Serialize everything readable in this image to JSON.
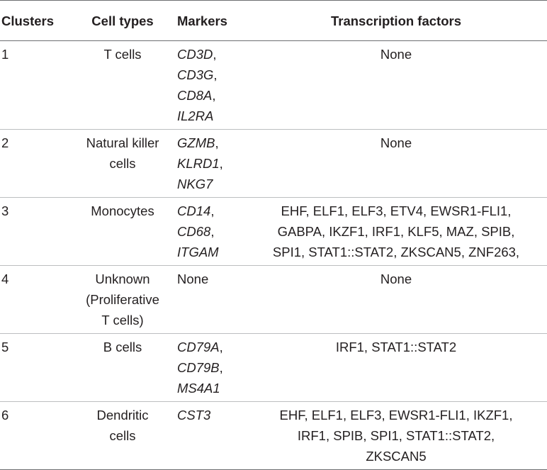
{
  "table": {
    "headers": [
      "Clusters",
      "Cell types",
      "Markers",
      "Transcription factors"
    ],
    "rows": [
      {
        "cluster": "1",
        "cell_type": [
          "T cells"
        ],
        "markers": [
          {
            "gene": "CD3D",
            "sep": ","
          },
          {
            "gene": "CD3G",
            "sep": ","
          },
          {
            "gene": "CD8A",
            "sep": ","
          },
          {
            "gene": "IL2RA",
            "sep": ""
          }
        ],
        "tf": [
          "None"
        ]
      },
      {
        "cluster": "2",
        "cell_type": [
          "Natural killer",
          "cells"
        ],
        "markers": [
          {
            "gene": "GZMB",
            "sep": ","
          },
          {
            "gene": "KLRD1",
            "sep": ","
          },
          {
            "gene": "NKG7",
            "sep": ""
          }
        ],
        "tf": [
          "None"
        ]
      },
      {
        "cluster": "3",
        "cell_type": [
          "Monocytes"
        ],
        "markers": [
          {
            "gene": "CD14",
            "sep": ","
          },
          {
            "gene": "CD68",
            "sep": ","
          },
          {
            "gene": "ITGAM",
            "sep": ""
          }
        ],
        "tf": [
          "EHF, ELF1, ELF3, ETV4, EWSR1-FLI1,",
          "GABPA, IKZF1, IRF1, KLF5, MAZ, SPIB,",
          "SPI1, STAT1::STAT2, ZKSCAN5, ZNF263,"
        ]
      },
      {
        "cluster": "4",
        "cell_type": [
          "Unknown",
          "(Proliferative",
          "T cells)"
        ],
        "markers": [
          {
            "gene": "None",
            "sep": "",
            "plain": true
          }
        ],
        "tf": [
          "None"
        ]
      },
      {
        "cluster": "5",
        "cell_type": [
          "B cells"
        ],
        "markers": [
          {
            "gene": "CD79A",
            "sep": ","
          },
          {
            "gene": "CD79B",
            "sep": ","
          },
          {
            "gene": "MS4A1",
            "sep": ""
          }
        ],
        "tf": [
          "IRF1, STAT1::STAT2"
        ]
      },
      {
        "cluster": "6",
        "cell_type": [
          "Dendritic",
          "cells"
        ],
        "markers": [
          {
            "gene": "CST3",
            "sep": ""
          }
        ],
        "tf": [
          "EHF, ELF1, ELF3, EWSR1-FLI1, IKZF1,",
          "IRF1, SPIB, SPI1, STAT1::STAT2,",
          "ZKSCAN5"
        ]
      }
    ]
  }
}
